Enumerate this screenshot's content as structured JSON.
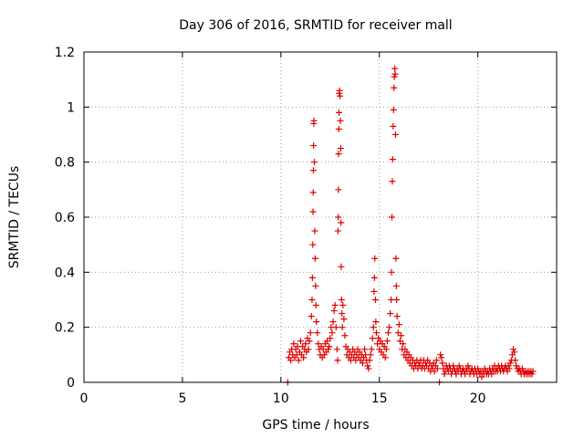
{
  "chart_data": {
    "type": "scatter",
    "title": "Day 306 of 2016, SRMTID for receiver mall",
    "xlabel": "GPS time / hours",
    "ylabel": "SRMTID / TECUs",
    "xlim": [
      0,
      24
    ],
    "ylim": [
      0,
      1.2
    ],
    "x_ticks": [
      0,
      5,
      10,
      15,
      20
    ],
    "y_ticks": [
      0,
      0.2,
      0.4,
      0.6,
      0.8,
      1,
      1.2
    ],
    "x_tick_labels": [
      "0",
      "5",
      "10",
      "15",
      "20"
    ],
    "y_tick_labels": [
      "0",
      "0.2",
      "0.4",
      "0.6",
      "0.8",
      "1",
      "1.2"
    ],
    "grid": true,
    "marker": "+",
    "marker_color": "#e00000",
    "grid_color": "#a0a0a0",
    "series": [
      {
        "name": "SRMTID",
        "points": [
          [
            10.35,
            0.0
          ],
          [
            10.4,
            0.09
          ],
          [
            10.45,
            0.11
          ],
          [
            10.5,
            0.08
          ],
          [
            10.55,
            0.12
          ],
          [
            10.6,
            0.1
          ],
          [
            10.65,
            0.14
          ],
          [
            10.7,
            0.09
          ],
          [
            10.75,
            0.12
          ],
          [
            10.8,
            0.1
          ],
          [
            10.85,
            0.13
          ],
          [
            10.9,
            0.08
          ],
          [
            10.95,
            0.11
          ],
          [
            11.0,
            0.15
          ],
          [
            11.05,
            0.1
          ],
          [
            11.1,
            0.13
          ],
          [
            11.15,
            0.09
          ],
          [
            11.2,
            0.12
          ],
          [
            11.25,
            0.14
          ],
          [
            11.3,
            0.11
          ],
          [
            11.35,
            0.16
          ],
          [
            11.4,
            0.12
          ],
          [
            11.45,
            0.15
          ],
          [
            11.5,
            0.18
          ],
          [
            11.55,
            0.24
          ],
          [
            11.58,
            0.3
          ],
          [
            11.6,
            0.38
          ],
          [
            11.62,
            0.5
          ],
          [
            11.63,
            0.62
          ],
          [
            11.64,
            0.69
          ],
          [
            11.65,
            0.77
          ],
          [
            11.66,
            0.86
          ],
          [
            11.67,
            0.94
          ],
          [
            11.68,
            0.95
          ],
          [
            11.7,
            0.8
          ],
          [
            11.72,
            0.55
          ],
          [
            11.74,
            0.45
          ],
          [
            11.76,
            0.35
          ],
          [
            11.78,
            0.28
          ],
          [
            11.8,
            0.22
          ],
          [
            11.85,
            0.18
          ],
          [
            11.9,
            0.14
          ],
          [
            11.95,
            0.12
          ],
          [
            12.0,
            0.1
          ],
          [
            12.05,
            0.13
          ],
          [
            12.1,
            0.09
          ],
          [
            12.15,
            0.12
          ],
          [
            12.2,
            0.1
          ],
          [
            12.25,
            0.14
          ],
          [
            12.3,
            0.11
          ],
          [
            12.35,
            0.15
          ],
          [
            12.4,
            0.12
          ],
          [
            12.45,
            0.13
          ],
          [
            12.5,
            0.16
          ],
          [
            12.55,
            0.2
          ],
          [
            12.6,
            0.18
          ],
          [
            12.65,
            0.22
          ],
          [
            12.7,
            0.26
          ],
          [
            12.75,
            0.28
          ],
          [
            12.8,
            0.2
          ],
          [
            12.85,
            0.12
          ],
          [
            12.88,
            0.08
          ],
          [
            12.9,
            0.55
          ],
          [
            12.91,
            0.6
          ],
          [
            12.92,
            0.7
          ],
          [
            12.93,
            0.83
          ],
          [
            12.94,
            0.92
          ],
          [
            12.95,
            0.98
          ],
          [
            12.96,
            1.05
          ],
          [
            12.98,
            1.06
          ],
          [
            13.0,
            1.04
          ],
          [
            13.02,
            0.95
          ],
          [
            13.04,
            0.85
          ],
          [
            13.05,
            0.58
          ],
          [
            13.06,
            0.42
          ],
          [
            13.08,
            0.3
          ],
          [
            13.1,
            0.25
          ],
          [
            13.12,
            0.2
          ],
          [
            13.15,
            0.28
          ],
          [
            13.2,
            0.23
          ],
          [
            13.25,
            0.17
          ],
          [
            13.3,
            0.13
          ],
          [
            13.35,
            0.1
          ],
          [
            13.4,
            0.12
          ],
          [
            13.45,
            0.09
          ],
          [
            13.5,
            0.11
          ],
          [
            13.55,
            0.08
          ],
          [
            13.6,
            0.1
          ],
          [
            13.65,
            0.12
          ],
          [
            13.7,
            0.09
          ],
          [
            13.75,
            0.11
          ],
          [
            13.8,
            0.08
          ],
          [
            13.85,
            0.1
          ],
          [
            13.9,
            0.12
          ],
          [
            13.95,
            0.09
          ],
          [
            14.0,
            0.11
          ],
          [
            14.05,
            0.08
          ],
          [
            14.1,
            0.1
          ],
          [
            14.15,
            0.07
          ],
          [
            14.2,
            0.09
          ],
          [
            14.25,
            0.12
          ],
          [
            14.3,
            0.1
          ],
          [
            14.35,
            0.08
          ],
          [
            14.4,
            0.06
          ],
          [
            14.45,
            0.05
          ],
          [
            14.5,
            0.08
          ],
          [
            14.55,
            0.1
          ],
          [
            14.6,
            0.12
          ],
          [
            14.65,
            0.16
          ],
          [
            14.7,
            0.2
          ],
          [
            14.73,
            0.33
          ],
          [
            14.75,
            0.38
          ],
          [
            14.77,
            0.45
          ],
          [
            14.8,
            0.3
          ],
          [
            14.82,
            0.22
          ],
          [
            14.85,
            0.18
          ],
          [
            14.9,
            0.14
          ],
          [
            14.95,
            0.16
          ],
          [
            15.0,
            0.12
          ],
          [
            15.05,
            0.15
          ],
          [
            15.1,
            0.11
          ],
          [
            15.15,
            0.14
          ],
          [
            15.2,
            0.1
          ],
          [
            15.25,
            0.13
          ],
          [
            15.3,
            0.09
          ],
          [
            15.35,
            0.12
          ],
          [
            15.4,
            0.15
          ],
          [
            15.45,
            0.18
          ],
          [
            15.5,
            0.2
          ],
          [
            15.55,
            0.25
          ],
          [
            15.6,
            0.3
          ],
          [
            15.62,
            0.4
          ],
          [
            15.64,
            0.6
          ],
          [
            15.66,
            0.73
          ],
          [
            15.68,
            0.81
          ],
          [
            15.7,
            0.93
          ],
          [
            15.72,
            0.99
          ],
          [
            15.74,
            1.07
          ],
          [
            15.76,
            1.11
          ],
          [
            15.78,
            1.14
          ],
          [
            15.8,
            1.12
          ],
          [
            15.82,
            0.9
          ],
          [
            15.84,
            0.45
          ],
          [
            15.86,
            0.35
          ],
          [
            15.88,
            0.3
          ],
          [
            15.9,
            0.24
          ],
          [
            15.95,
            0.18
          ],
          [
            16.0,
            0.21
          ],
          [
            16.05,
            0.15
          ],
          [
            16.1,
            0.17
          ],
          [
            16.15,
            0.12
          ],
          [
            16.2,
            0.14
          ],
          [
            16.25,
            0.1
          ],
          [
            16.3,
            0.12
          ],
          [
            16.35,
            0.09
          ],
          [
            16.4,
            0.11
          ],
          [
            16.45,
            0.08
          ],
          [
            16.5,
            0.1
          ],
          [
            16.55,
            0.07
          ],
          [
            16.6,
            0.09
          ],
          [
            16.65,
            0.06
          ],
          [
            16.7,
            0.08
          ],
          [
            16.75,
            0.05
          ],
          [
            16.8,
            0.07
          ],
          [
            16.85,
            0.06
          ],
          [
            16.9,
            0.08
          ],
          [
            16.95,
            0.05
          ],
          [
            17.0,
            0.07
          ],
          [
            17.05,
            0.06
          ],
          [
            17.1,
            0.08
          ],
          [
            17.15,
            0.05
          ],
          [
            17.2,
            0.06
          ],
          [
            17.25,
            0.08
          ],
          [
            17.3,
            0.05
          ],
          [
            17.35,
            0.07
          ],
          [
            17.4,
            0.06
          ],
          [
            17.45,
            0.08
          ],
          [
            17.5,
            0.05
          ],
          [
            17.55,
            0.07
          ],
          [
            17.6,
            0.04
          ],
          [
            17.65,
            0.06
          ],
          [
            17.7,
            0.05
          ],
          [
            17.75,
            0.07
          ],
          [
            17.8,
            0.04
          ],
          [
            17.85,
            0.06
          ],
          [
            17.9,
            0.08
          ],
          [
            17.95,
            0.05
          ],
          [
            18.05,
            0.0
          ],
          [
            18.1,
            0.1
          ],
          [
            18.15,
            0.09
          ],
          [
            18.2,
            0.07
          ],
          [
            18.25,
            0.05
          ],
          [
            18.3,
            0.03
          ],
          [
            18.35,
            0.04
          ],
          [
            18.4,
            0.06
          ],
          [
            18.45,
            0.05
          ],
          [
            18.5,
            0.04
          ],
          [
            18.55,
            0.06
          ],
          [
            18.6,
            0.05
          ],
          [
            18.65,
            0.03
          ],
          [
            18.7,
            0.04
          ],
          [
            18.75,
            0.06
          ],
          [
            18.8,
            0.05
          ],
          [
            18.85,
            0.04
          ],
          [
            18.9,
            0.03
          ],
          [
            18.95,
            0.05
          ],
          [
            19.0,
            0.04
          ],
          [
            19.05,
            0.06
          ],
          [
            19.1,
            0.05
          ],
          [
            19.15,
            0.03
          ],
          [
            19.2,
            0.04
          ],
          [
            19.25,
            0.05
          ],
          [
            19.3,
            0.04
          ],
          [
            19.35,
            0.03
          ],
          [
            19.4,
            0.05
          ],
          [
            19.45,
            0.04
          ],
          [
            19.5,
            0.06
          ],
          [
            19.55,
            0.05
          ],
          [
            19.6,
            0.03
          ],
          [
            19.65,
            0.04
          ],
          [
            19.7,
            0.05
          ],
          [
            19.75,
            0.04
          ],
          [
            19.8,
            0.03
          ],
          [
            19.85,
            0.05
          ],
          [
            19.9,
            0.04
          ],
          [
            19.95,
            0.03
          ],
          [
            20.0,
            0.05
          ],
          [
            20.05,
            0.04
          ],
          [
            20.1,
            0.03
          ],
          [
            20.15,
            0.04
          ],
          [
            20.2,
            0.02
          ],
          [
            20.25,
            0.04
          ],
          [
            20.3,
            0.03
          ],
          [
            20.35,
            0.05
          ],
          [
            20.4,
            0.04
          ],
          [
            20.45,
            0.03
          ],
          [
            20.5,
            0.04
          ],
          [
            20.55,
            0.03
          ],
          [
            20.6,
            0.05
          ],
          [
            20.65,
            0.04
          ],
          [
            20.7,
            0.03
          ],
          [
            20.75,
            0.05
          ],
          [
            20.8,
            0.04
          ],
          [
            20.85,
            0.06
          ],
          [
            20.9,
            0.04
          ],
          [
            20.95,
            0.05
          ],
          [
            21.0,
            0.04
          ],
          [
            21.05,
            0.06
          ],
          [
            21.1,
            0.05
          ],
          [
            21.15,
            0.04
          ],
          [
            21.2,
            0.06
          ],
          [
            21.25,
            0.05
          ],
          [
            21.3,
            0.04
          ],
          [
            21.35,
            0.05
          ],
          [
            21.4,
            0.06
          ],
          [
            21.45,
            0.05
          ],
          [
            21.5,
            0.04
          ],
          [
            21.55,
            0.06
          ],
          [
            21.6,
            0.05
          ],
          [
            21.65,
            0.07
          ],
          [
            21.7,
            0.08
          ],
          [
            21.75,
            0.1
          ],
          [
            21.8,
            0.12
          ],
          [
            21.85,
            0.11
          ],
          [
            21.9,
            0.08
          ],
          [
            21.95,
            0.06
          ],
          [
            22.0,
            0.05
          ],
          [
            22.05,
            0.04
          ],
          [
            22.1,
            0.05
          ],
          [
            22.15,
            0.04
          ],
          [
            22.2,
            0.03
          ],
          [
            22.25,
            0.05
          ],
          [
            22.3,
            0.04
          ],
          [
            22.35,
            0.03
          ],
          [
            22.4,
            0.04
          ],
          [
            22.45,
            0.03
          ],
          [
            22.5,
            0.04
          ],
          [
            22.55,
            0.03
          ],
          [
            22.6,
            0.04
          ],
          [
            22.65,
            0.03
          ],
          [
            22.7,
            0.04
          ],
          [
            22.75,
            0.03
          ],
          [
            22.8,
            0.04
          ]
        ]
      }
    ]
  }
}
